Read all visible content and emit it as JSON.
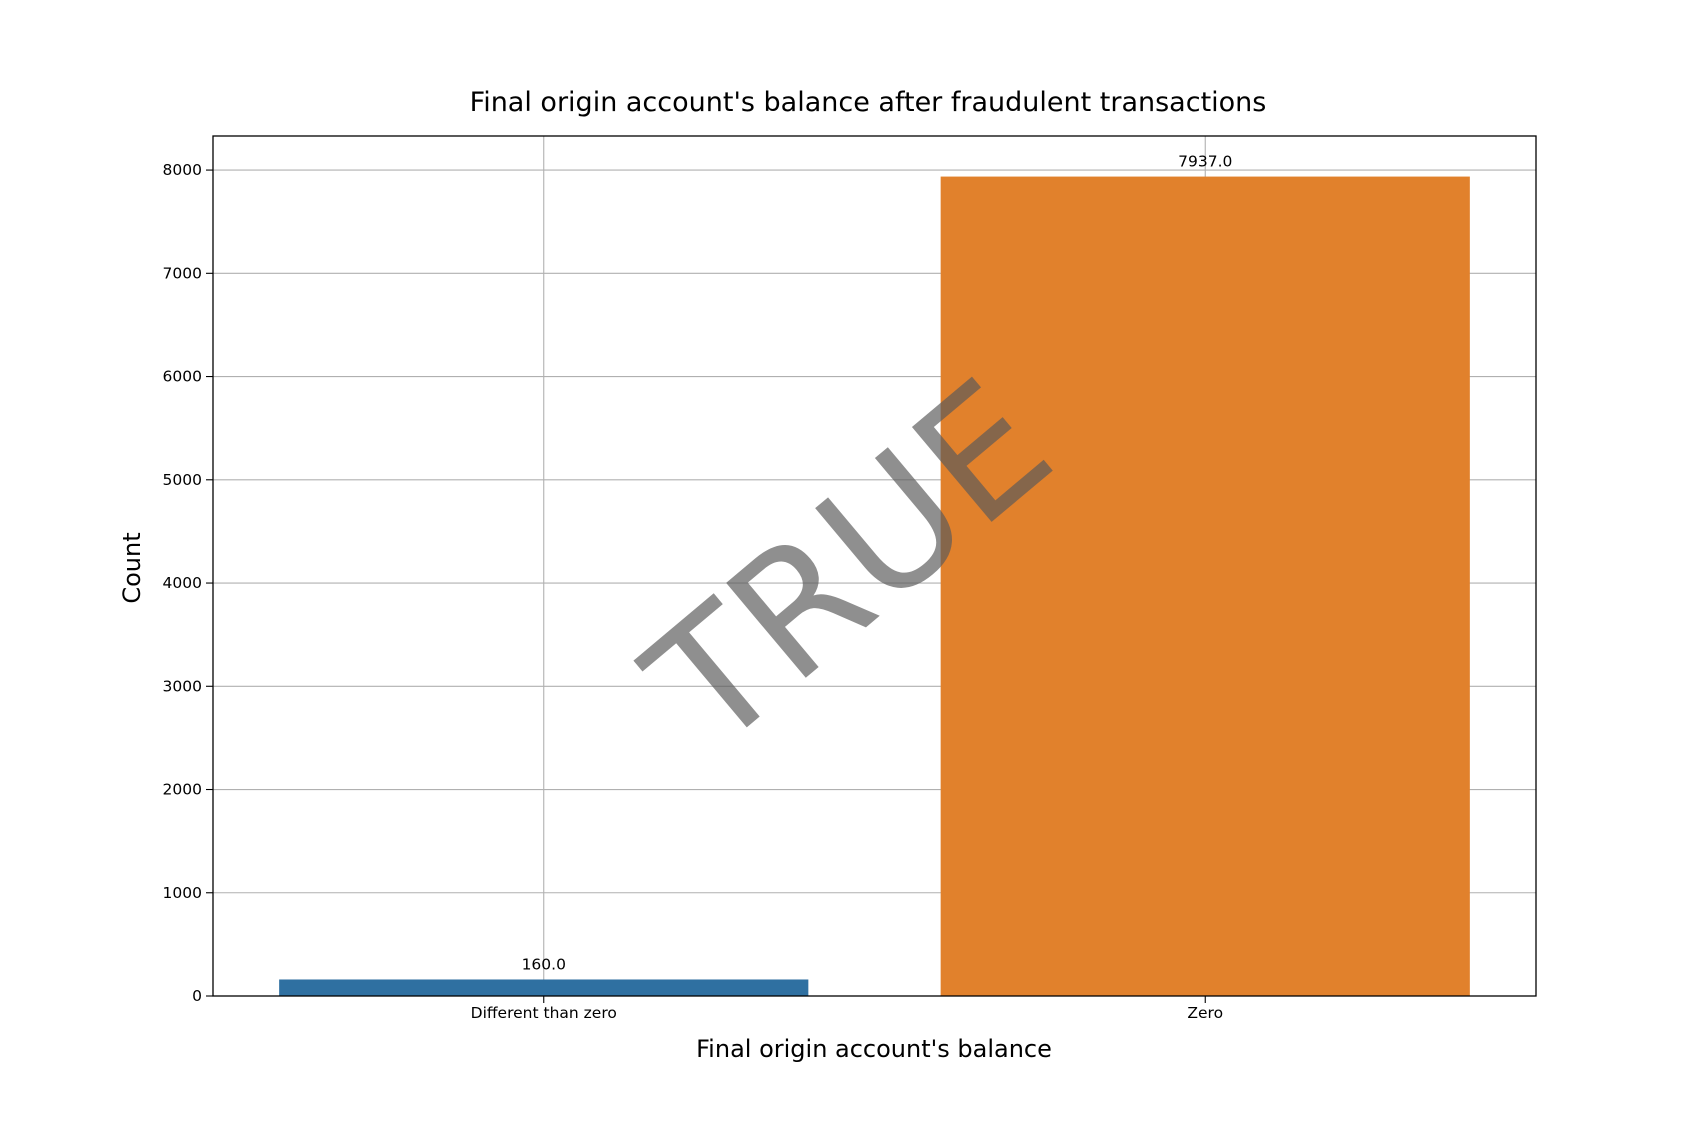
{
  "chart_data": {
    "type": "bar",
    "title": "Final origin account's balance after fraudulent transactions",
    "xlabel": "Final origin account's balance",
    "ylabel": "Count",
    "categories": [
      "Different than zero",
      "Zero"
    ],
    "values": [
      160.0,
      7937.0
    ],
    "data_labels": [
      "160.0",
      "7937.0"
    ],
    "ylim": [
      0,
      8330
    ],
    "yticks": [
      0,
      1000,
      2000,
      3000,
      4000,
      5000,
      6000,
      7000,
      8000
    ],
    "colors": [
      "#2f70a1",
      "#e1812c"
    ],
    "grid": true,
    "legend": "none"
  },
  "watermark": {
    "text": "TRUE",
    "color": "#5a5a5a"
  }
}
